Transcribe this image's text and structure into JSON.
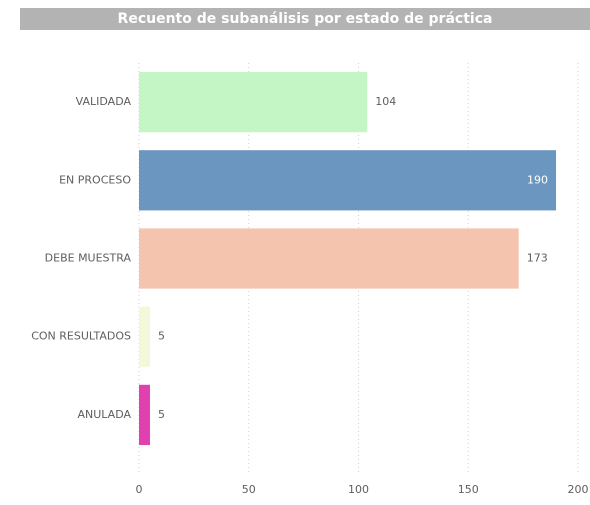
{
  "chart_data": {
    "type": "hbar",
    "title": "Recuento de subanálisis por estado de práctica",
    "categories": [
      "VALIDADA",
      "EN PROCESO",
      "DEBE MUESTRA",
      "CON RESULTADOS",
      "ANULADA"
    ],
    "values": [
      104,
      190,
      173,
      5,
      5
    ],
    "colors": [
      "#c4f5c4",
      "#6b96bf",
      "#f4c4ae",
      "#f2f8d8",
      "#e040b0"
    ],
    "xlim": [
      0,
      200
    ],
    "xticks": [
      0,
      50,
      100,
      150,
      200
    ],
    "grid": true
  }
}
